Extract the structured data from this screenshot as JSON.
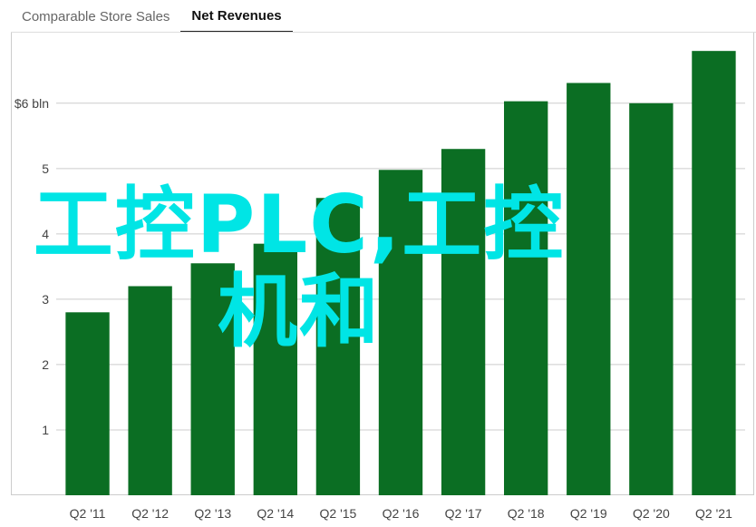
{
  "tabs": [
    {
      "label": "Comparable Store Sales",
      "active": false
    },
    {
      "label": "Net Revenues",
      "active": true
    }
  ],
  "watermark": "工控PLC,工控机和",
  "colors": {
    "bar": "#0b6e23",
    "grid": "#cccccc",
    "tick_text": "#444444",
    "watermark": "#00e5e5"
  },
  "chart_data": {
    "type": "bar",
    "categories": [
      "Q2 '11",
      "Q2 '12",
      "Q2 '13",
      "Q2 '14",
      "Q2 '15",
      "Q2 '16",
      "Q2 '17",
      "Q2 '18",
      "Q2 '19",
      "Q2 '20",
      "Q2 '21"
    ],
    "values": [
      2.8,
      3.2,
      3.55,
      3.85,
      4.55,
      4.98,
      5.3,
      6.03,
      6.31,
      6.0,
      6.8
    ],
    "yticks": [
      {
        "value": 1,
        "label": "1"
      },
      {
        "value": 2,
        "label": "2"
      },
      {
        "value": 3,
        "label": "3"
      },
      {
        "value": 4,
        "label": "4"
      },
      {
        "value": 5,
        "label": "5"
      },
      {
        "value": 6,
        "label": "$6 bln"
      }
    ],
    "ylim": [
      0,
      7.08
    ],
    "grid": true,
    "title": "",
    "xlabel": "",
    "ylabel": ""
  }
}
